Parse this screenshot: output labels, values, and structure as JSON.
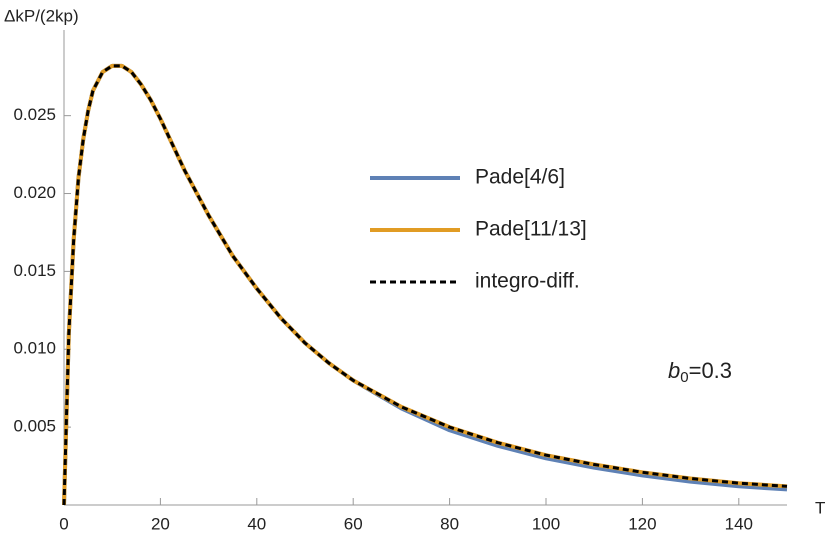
{
  "chart_data": {
    "type": "line",
    "y_label": "ΔkP/(2kp)",
    "x_label": "T",
    "annotation": {
      "base": "b",
      "subscript": "0",
      "suffix": "=0.3"
    },
    "x": [
      0,
      1,
      2,
      3,
      4,
      5,
      6,
      8,
      10,
      12,
      14,
      16,
      18,
      20,
      25,
      30,
      35,
      40,
      45,
      50,
      55,
      60,
      70,
      80,
      90,
      100,
      110,
      120,
      130,
      140,
      150
    ],
    "series": [
      {
        "name": "Pade[4/6]",
        "color": "#5e81b5",
        "dashed": false,
        "values": [
          0,
          0.011,
          0.017,
          0.021,
          0.0235,
          0.0253,
          0.0266,
          0.0278,
          0.0282,
          0.0282,
          0.0278,
          0.027,
          0.026,
          0.0248,
          0.0215,
          0.0186,
          0.016,
          0.0139,
          0.012,
          0.0104,
          0.0091,
          0.008,
          0.0062,
          0.0048,
          0.0038,
          0.003,
          0.0024,
          0.0019,
          0.0015,
          0.0012,
          0.001
        ]
      },
      {
        "name": "Pade[11/13]",
        "color": "#e19c24",
        "dashed": false,
        "values": [
          0,
          0.011,
          0.017,
          0.021,
          0.0235,
          0.0253,
          0.0266,
          0.0278,
          0.0282,
          0.0282,
          0.0278,
          0.027,
          0.026,
          0.0248,
          0.0215,
          0.0186,
          0.016,
          0.0139,
          0.012,
          0.0104,
          0.0091,
          0.008,
          0.0063,
          0.005,
          0.004,
          0.0032,
          0.0026,
          0.0021,
          0.0017,
          0.0014,
          0.0012
        ]
      },
      {
        "name": "integro-diff.",
        "color": "#000000",
        "dashed": true,
        "values": [
          0,
          0.011,
          0.017,
          0.021,
          0.0235,
          0.0253,
          0.0266,
          0.0278,
          0.0282,
          0.0282,
          0.0278,
          0.027,
          0.026,
          0.0248,
          0.0215,
          0.0186,
          0.016,
          0.0139,
          0.012,
          0.0104,
          0.0091,
          0.008,
          0.0063,
          0.005,
          0.004,
          0.0032,
          0.0026,
          0.0021,
          0.0017,
          0.0014,
          0.0012
        ]
      }
    ],
    "xlim": [
      0,
      150
    ],
    "ylim": [
      0,
      0.0305
    ],
    "xticks": [
      0,
      20,
      40,
      60,
      80,
      100,
      120,
      140
    ],
    "yticks": [
      0.005,
      {
        "value": 0.01,
        "label": "0.010"
      },
      0.015,
      {
        "value": 0.02,
        "label": "0.020"
      },
      0.025
    ]
  }
}
